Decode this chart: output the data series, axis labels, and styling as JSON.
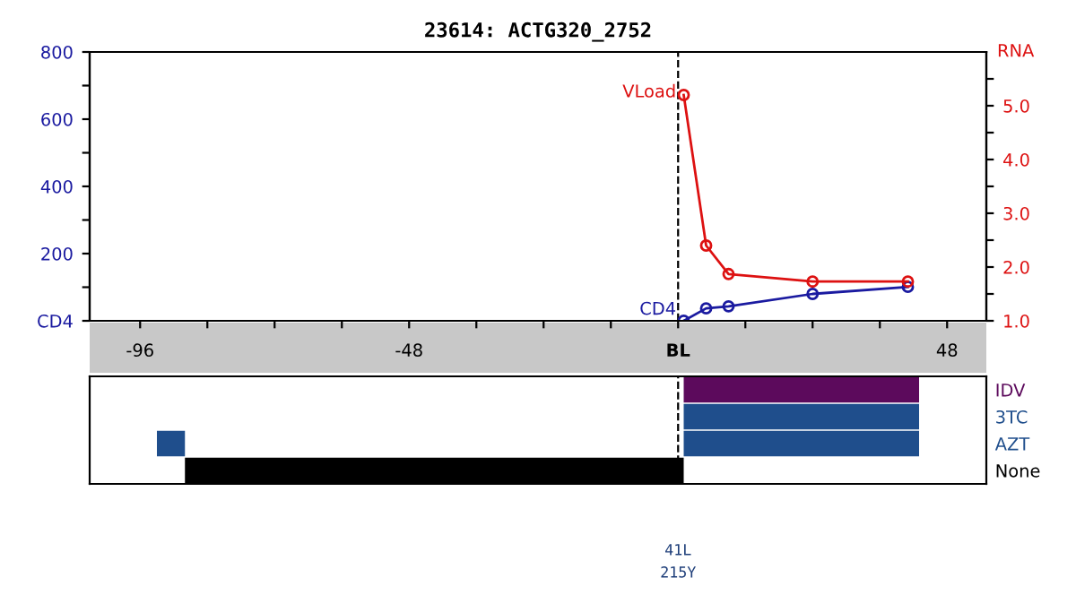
{
  "chart_data": [
    {
      "type": "line",
      "title": "23614: ACTG320_2752",
      "y2label": "RNA",
      "marker": "circle",
      "line_style": "solid",
      "series": [
        {
          "name": "CD4",
          "color": "#1a1aa0",
          "x": [
            1,
            5,
            9,
            24,
            41
          ],
          "values": [
            0,
            37,
            43,
            80,
            101
          ]
        },
        {
          "name": "VLoad",
          "color": "#dd1111",
          "axis": "y2",
          "x": [
            1,
            5,
            9,
            24,
            41
          ],
          "values": [
            5.2,
            2.4,
            1.87,
            1.73,
            1.73
          ]
        }
      ],
      "xlim": [
        -105,
        55
      ],
      "xticks": [
        -96,
        {
          "value": -84,
          "label": null
        },
        {
          "value": -72,
          "label": null
        },
        {
          "value": -60,
          "label": null
        },
        -48,
        {
          "value": -36,
          "label": null
        },
        {
          "value": -24,
          "label": null
        },
        {
          "value": -12,
          "label": null
        },
        {
          "value": 0,
          "label": "BL"
        },
        {
          "value": 12,
          "label": null
        },
        {
          "value": 24,
          "label": null
        },
        {
          "value": 36,
          "label": null
        },
        48
      ],
      "ylim": [
        0,
        800
      ],
      "yticks": [
        {
          "value": 0,
          "label": "CD4"
        },
        {
          "value": 100,
          "label": null
        },
        200,
        {
          "value": 300,
          "label": null
        },
        400,
        {
          "value": 500,
          "label": null
        },
        600,
        {
          "value": 700,
          "label": null
        },
        800
      ],
      "y2lim": [
        1,
        6
      ],
      "y2ticks": [
        {
          "value": 1,
          "label": "1.0"
        },
        {
          "value": 1.5,
          "label": null
        },
        {
          "value": 2,
          "label": "2.0"
        },
        {
          "value": 2.5,
          "label": null
        },
        {
          "value": 3,
          "label": "3.0"
        },
        {
          "value": 3.5,
          "label": null
        },
        {
          "value": 4,
          "label": "4.0"
        },
        {
          "value": 4.5,
          "label": null
        },
        {
          "value": 5,
          "label": "5.0"
        },
        {
          "value": 5.5,
          "label": null
        }
      ],
      "ref_lines": [
        {
          "axis": "x",
          "value": 0,
          "line_style": "dashed",
          "color": "#000000"
        }
      ],
      "grid": false,
      "legend": false
    },
    {
      "type": "bar",
      "orientation": "horizontal",
      "categories": [
        "IDV",
        "3TC",
        "AZT",
        "None"
      ],
      "series": [
        {
          "values": [
            42,
            42,
            42,
            89
          ],
          "base": [
            1,
            1,
            1,
            -88
          ],
          "colors": [
            "#5c0a5c",
            "#1f4e8c",
            "#1f4e8c",
            "#000000"
          ]
        },
        {
          "values": [
            null,
            null,
            5,
            null
          ],
          "base": [
            null,
            null,
            -93,
            null
          ],
          "colors": [
            null,
            null,
            "#1f4e8c",
            null
          ]
        }
      ],
      "xlim": [
        -105,
        55
      ],
      "tick_labels": "y",
      "ref_lines": [
        {
          "axis": "x",
          "value": 0,
          "line_style": "dashed",
          "color": "#000000"
        }
      ],
      "annotations": [
        "41L",
        "215Y"
      ],
      "grid": false,
      "legend": false
    }
  ]
}
